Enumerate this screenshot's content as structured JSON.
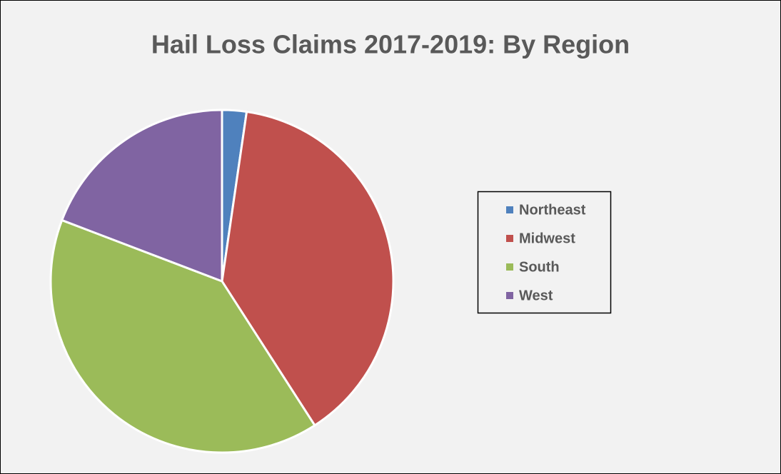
{
  "chart_data": {
    "type": "pie",
    "title": "Hail Loss Claims 2017-2019: By Region",
    "categories": [
      "Northeast",
      "Midwest",
      "South",
      "West"
    ],
    "values": [
      2.3,
      38.6,
      39.9,
      19.2
    ],
    "colors": [
      "#4f81bd",
      "#c0504d",
      "#9bbb59",
      "#8064a2"
    ],
    "legend": "right"
  }
}
